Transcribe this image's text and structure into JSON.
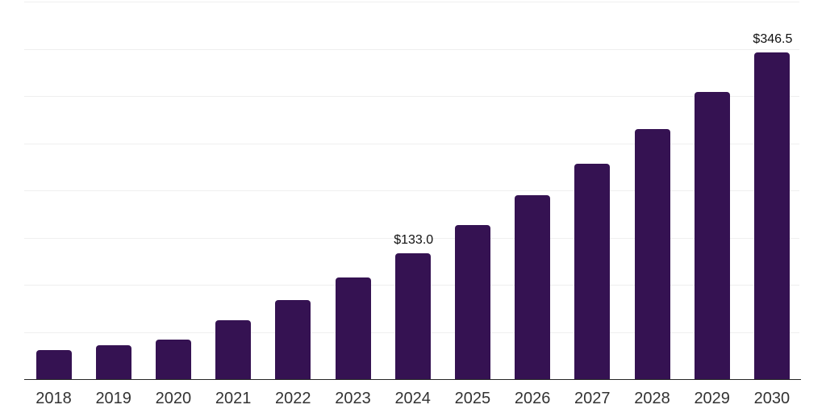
{
  "chart_data": {
    "type": "bar",
    "title": "",
    "xlabel": "",
    "ylabel": "",
    "categories": [
      "2018",
      "2019",
      "2020",
      "2021",
      "2022",
      "2023",
      "2024",
      "2025",
      "2026",
      "2027",
      "2028",
      "2029",
      "2030"
    ],
    "values": [
      31,
      36,
      42,
      62.5,
      83.5,
      107.5,
      133.0,
      163,
      195,
      228,
      265,
      304,
      346.5
    ],
    "value_labels": [
      "",
      "",
      "",
      "",
      "",
      "",
      "$133.0",
      "",
      "",
      "",
      "",
      "",
      "$346.5"
    ],
    "labeled_points": [
      {
        "category": "2024",
        "label": "$133.0",
        "value": 133.0
      },
      {
        "category": "2030",
        "label": "$346.5",
        "value": 346.5
      }
    ],
    "ylim": [
      0,
      400
    ],
    "gridline_step": 50,
    "grid": "horizontal",
    "legend": "none",
    "colors": {
      "bar": "#351252",
      "gridline": "#efefef",
      "axis_line": "#262626",
      "x_tick_label": "#333333",
      "value_label": "#111111",
      "background": "#ffffff"
    }
  }
}
